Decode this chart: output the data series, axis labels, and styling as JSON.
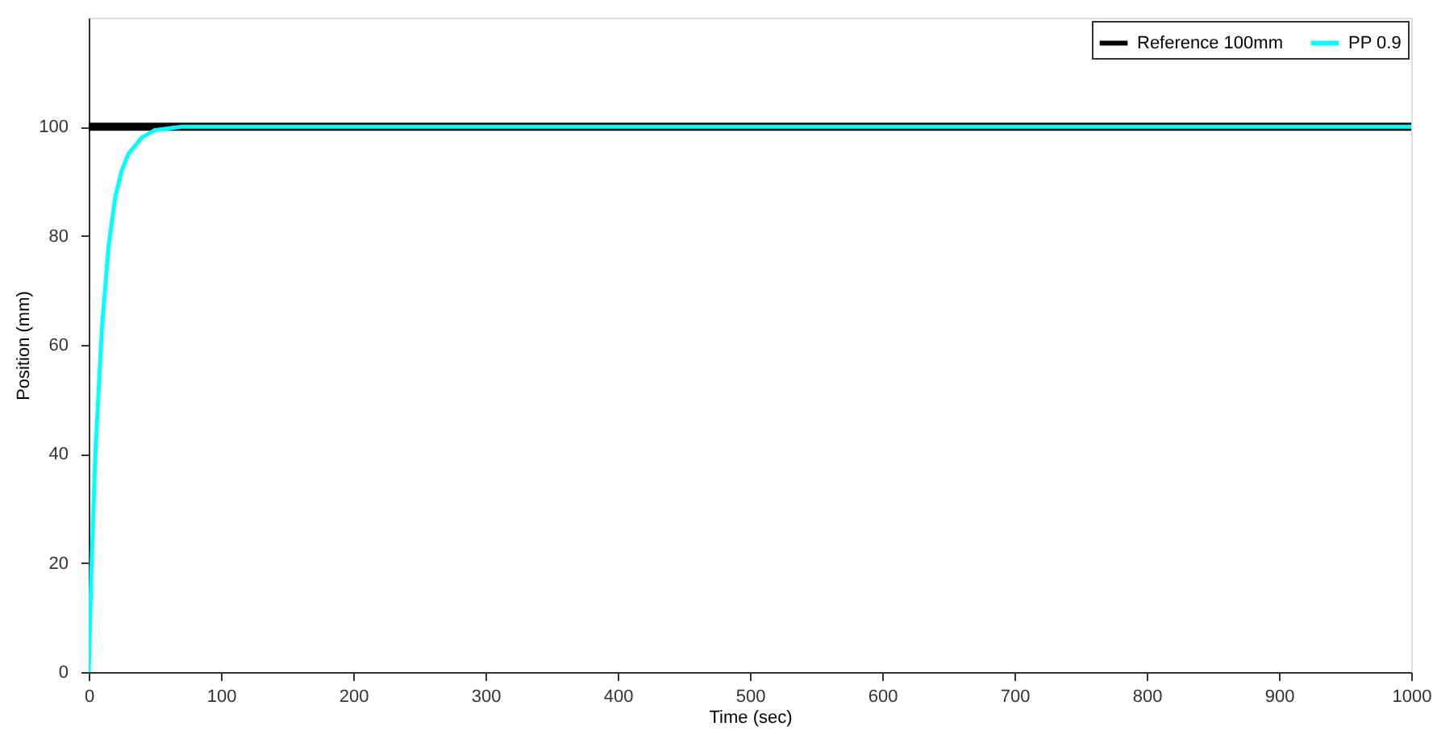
{
  "chart_data": {
    "type": "line",
    "xlabel": "Time (sec)",
    "ylabel": "Position (mm)",
    "xlim": [
      0,
      1000
    ],
    "xticks": [
      0,
      100,
      200,
      300,
      400,
      500,
      600,
      700,
      800,
      900,
      1000
    ],
    "ylim": [
      0,
      120
    ],
    "yticks": [
      0,
      20,
      40,
      60,
      80,
      100
    ],
    "grid": false,
    "legend": "top right",
    "line_style": "solid",
    "marker": "none",
    "series": [
      {
        "name": "Reference 100mm",
        "color": "#000000",
        "x": [
          0,
          1000
        ],
        "values": [
          100,
          100
        ]
      },
      {
        "name": "PP 0.9",
        "color": "#00ffff",
        "x": [
          0,
          2,
          5,
          10,
          15,
          20,
          25,
          30,
          40,
          50,
          70,
          1000
        ],
        "values": [
          0,
          18,
          40,
          63,
          78,
          87,
          92,
          95,
          98,
          99.4,
          100,
          100
        ]
      }
    ]
  }
}
